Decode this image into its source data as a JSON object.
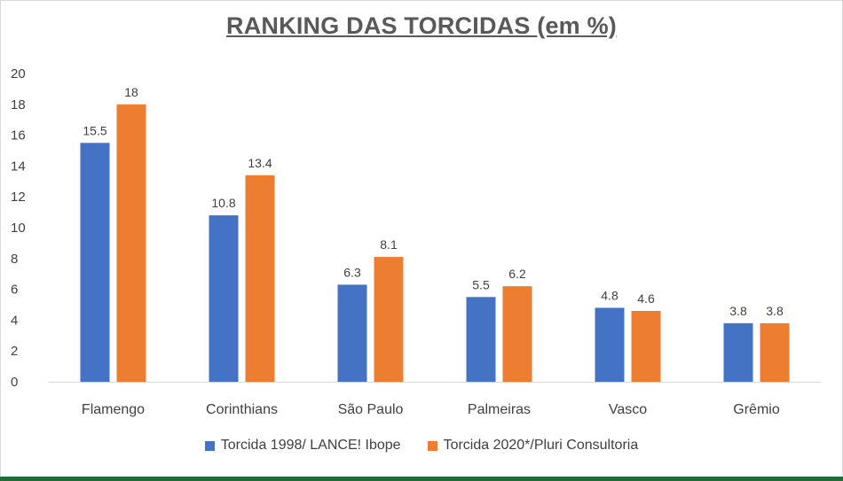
{
  "chart_data": {
    "type": "bar",
    "title": "RANKING DAS TORCIDAS (em %)",
    "categories": [
      "Flamengo",
      "Corinthians",
      "São Paulo",
      "Palmeiras",
      "Vasco",
      "Grêmio"
    ],
    "series": [
      {
        "name": "Torcida 1998/ LANCE! Ibope",
        "color": "#4472c4",
        "values": [
          15.5,
          10.8,
          6.3,
          5.5,
          4.8,
          3.8
        ]
      },
      {
        "name": "Torcida 2020*/Pluri Consultoria",
        "color": "#ed7d31",
        "values": [
          18,
          13.4,
          8.1,
          6.2,
          4.6,
          3.8
        ]
      }
    ],
    "data_labels": [
      [
        "15.5",
        "10.8",
        "6.3",
        "5.5",
        "4.8",
        "3.8"
      ],
      [
        "18",
        "13.4",
        "8.1",
        "6.2",
        "4.6",
        "3.8"
      ]
    ],
    "yticks": [
      "0",
      "2",
      "4",
      "6",
      "8",
      "10",
      "12",
      "14",
      "16",
      "18",
      "20"
    ],
    "ylim": [
      0,
      20
    ],
    "grid": false,
    "legend_position": "bottom",
    "xlabel": "",
    "ylabel": ""
  }
}
